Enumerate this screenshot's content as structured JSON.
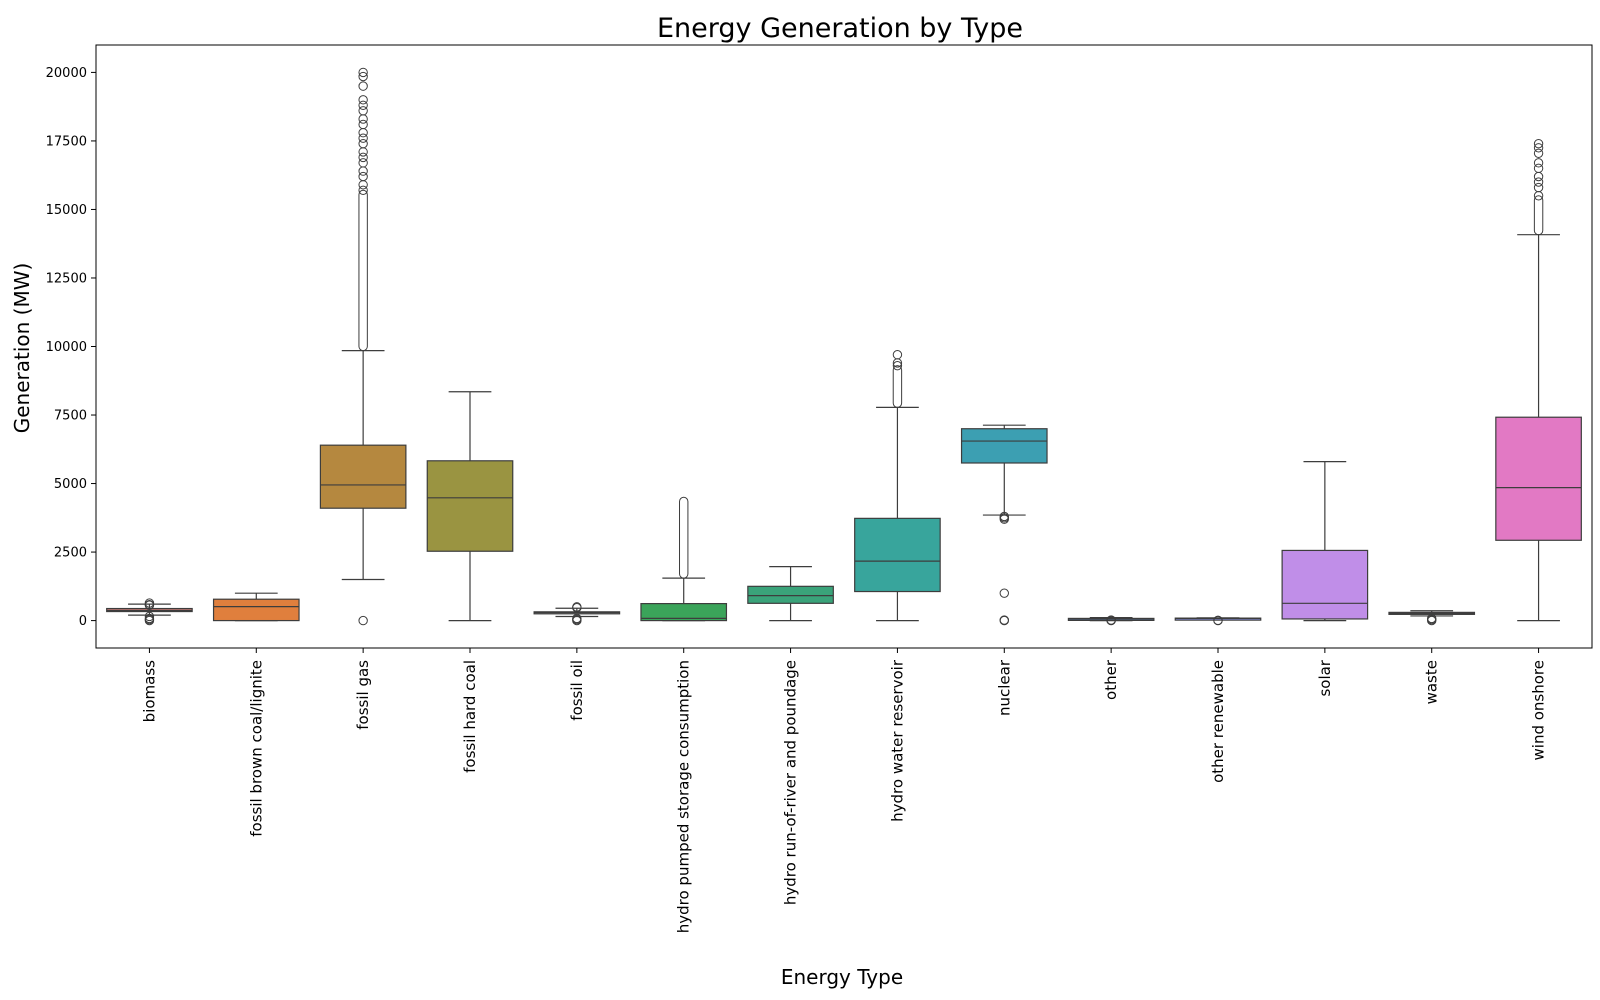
{
  "chart_data": {
    "type": "box",
    "title": "Energy Generation by Type",
    "xlabel": "Energy Type",
    "ylabel": "Generation (MW)",
    "ylim": [
      -1000,
      21000
    ],
    "yticks": [
      0,
      2500,
      5000,
      7500,
      10000,
      12500,
      15000,
      17500,
      20000
    ],
    "grid": false,
    "legend": "none",
    "categories": [
      "biomass",
      "fossil brown coal/lignite",
      "fossil gas",
      "fossil hard coal",
      "fossil oil",
      "hydro pumped storage consumption",
      "hydro run-of-river and poundage",
      "hydro water reservoir",
      "nuclear",
      "other",
      "other renewable",
      "solar",
      "waste",
      "wind onshore"
    ],
    "boxes": [
      {
        "color": "#c87c78",
        "whisker_low": 200,
        "q1": 330,
        "median": 370,
        "q3": 440,
        "whisker_high": 600,
        "outliers": [
          0,
          40,
          80,
          150,
          640,
          580,
          560
        ]
      },
      {
        "color": "#e07f3d",
        "whisker_low": 0,
        "q1": 0,
        "median": 510,
        "q3": 780,
        "whisker_high": 1000,
        "outliers": []
      },
      {
        "color": "#b5883f",
        "whisker_low": 1500,
        "q1": 4100,
        "median": 4950,
        "q3": 6400,
        "whisker_high": 9850,
        "outliers": [
          0,
          19850,
          20000,
          19500,
          19000,
          18800,
          18600,
          18300,
          18100,
          17800,
          17600,
          17400,
          17100,
          16900,
          16700,
          16400,
          16200,
          15900,
          15700
        ]
      },
      {
        "color": "#9a9441",
        "whisker_low": 0,
        "q1": 2530,
        "median": 4480,
        "q3": 5830,
        "whisker_high": 8350,
        "outliers": []
      },
      {
        "color": "#d0d0d0",
        "whisker_low": 150,
        "q1": 260,
        "median": 290,
        "q3": 320,
        "whisker_high": 450,
        "outliers": [
          0,
          40,
          80,
          470,
          500
        ]
      },
      {
        "color": "#3ba45a",
        "whisker_low": 0,
        "q1": 0,
        "median": 80,
        "q3": 620,
        "whisker_high": 1550,
        "outliers": []
      },
      {
        "color": "#3aa37a",
        "whisker_low": 0,
        "q1": 630,
        "median": 910,
        "q3": 1250,
        "whisker_high": 1970,
        "outliers": []
      },
      {
        "color": "#38a59c",
        "whisker_low": 0,
        "q1": 1060,
        "median": 2170,
        "q3": 3730,
        "whisker_high": 7780,
        "outliers": [
          9700,
          9400,
          9300
        ]
      },
      {
        "color": "#3c9fb2",
        "whisker_low": 3850,
        "q1": 5750,
        "median": 6550,
        "q3": 7000,
        "whisker_high": 7130,
        "outliers": [
          3750,
          3700,
          3800,
          1000,
          0,
          20
        ]
      },
      {
        "color": "#6a96d6",
        "whisker_low": 0,
        "q1": 30,
        "median": 55,
        "q3": 80,
        "whisker_high": 110,
        "outliers": [
          0,
          10,
          20
        ]
      },
      {
        "color": "#8a95e8",
        "whisker_low": 60,
        "q1": 70,
        "median": 80,
        "q3": 90,
        "whisker_high": 100,
        "outliers": [
          0,
          10
        ]
      },
      {
        "color": "#c08ee8",
        "whisker_low": 0,
        "q1": 60,
        "median": 630,
        "q3": 2560,
        "whisker_high": 5800,
        "outliers": []
      },
      {
        "color": "#e094d4",
        "whisker_low": 170,
        "q1": 230,
        "median": 260,
        "q3": 300,
        "whisker_high": 360,
        "outliers": [
          0,
          40,
          80
        ]
      },
      {
        "color": "#e279c4",
        "whisker_low": 0,
        "q1": 2930,
        "median": 4850,
        "q3": 7420,
        "whisker_high": 14080,
        "outliers": [
          17400,
          17250,
          17050,
          16700,
          16500,
          16200,
          16000,
          15800,
          15500
        ]
      }
    ]
  }
}
